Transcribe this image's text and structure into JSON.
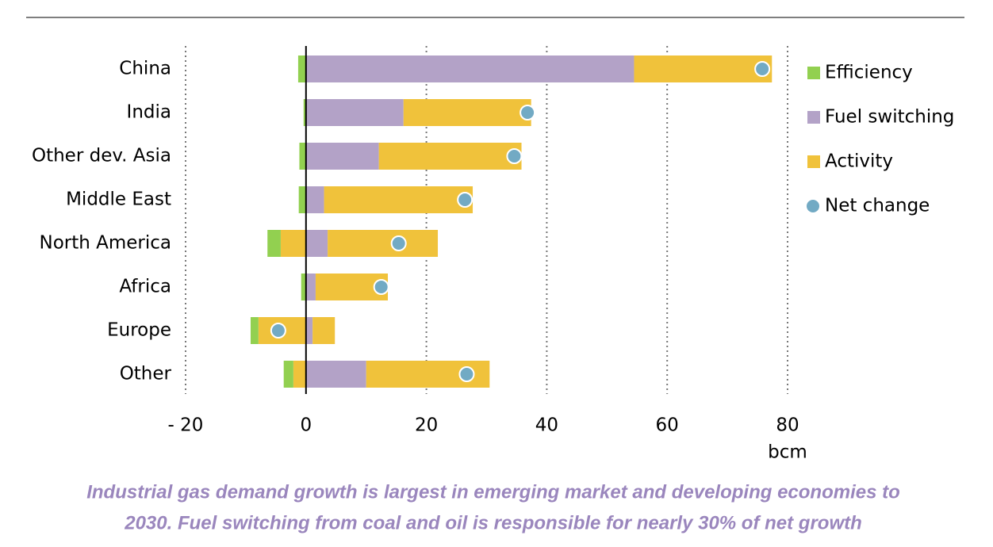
{
  "chart_data": {
    "type": "stacked-bar-horizontal",
    "categories": [
      "China",
      "India",
      "Other dev. Asia",
      "Middle East",
      "North America",
      "Africa",
      "Europe",
      "Other"
    ],
    "series": [
      {
        "name": "Efficiency",
        "color": "#92d050",
        "values": [
          -1.3,
          -0.4,
          -1.1,
          -1.2,
          -2.2,
          -0.8,
          -1.3,
          -1.6
        ]
      },
      {
        "name": "Fuel switching",
        "color": "#b3a2c7",
        "values": [
          54.5,
          16.2,
          12.1,
          3.0,
          3.6,
          1.6,
          1.1,
          10.0
        ]
      },
      {
        "name": "Activity",
        "color": "#f0c23b",
        "values": [
          22.9,
          21.2,
          23.7,
          24.7,
          18.3,
          12.0,
          3.7,
          20.5
        ]
      },
      {
        "name": "Activity",
        "color": "#f0c23b",
        "values": [
          0,
          0,
          0,
          0,
          -4.2,
          0,
          -7.9,
          -2.1
        ]
      }
    ],
    "net": {
      "name": "Net change",
      "color": "#72aac4",
      "values": [
        75.8,
        36.8,
        34.6,
        26.4,
        15.4,
        12.5,
        -4.6,
        26.7
      ]
    },
    "xlim": [
      -20,
      80
    ],
    "xticks": [
      {
        "value": -20,
        "label": "- 20"
      },
      0,
      20,
      40,
      60,
      80
    ],
    "xlabel": "bcm",
    "grid": true,
    "legend": "right",
    "caption": [
      "Industrial gas demand growth is largest in emerging market and developing economies to",
      "2030. Fuel switching from coal and oil is responsible for nearly 30% of net growth"
    ]
  }
}
